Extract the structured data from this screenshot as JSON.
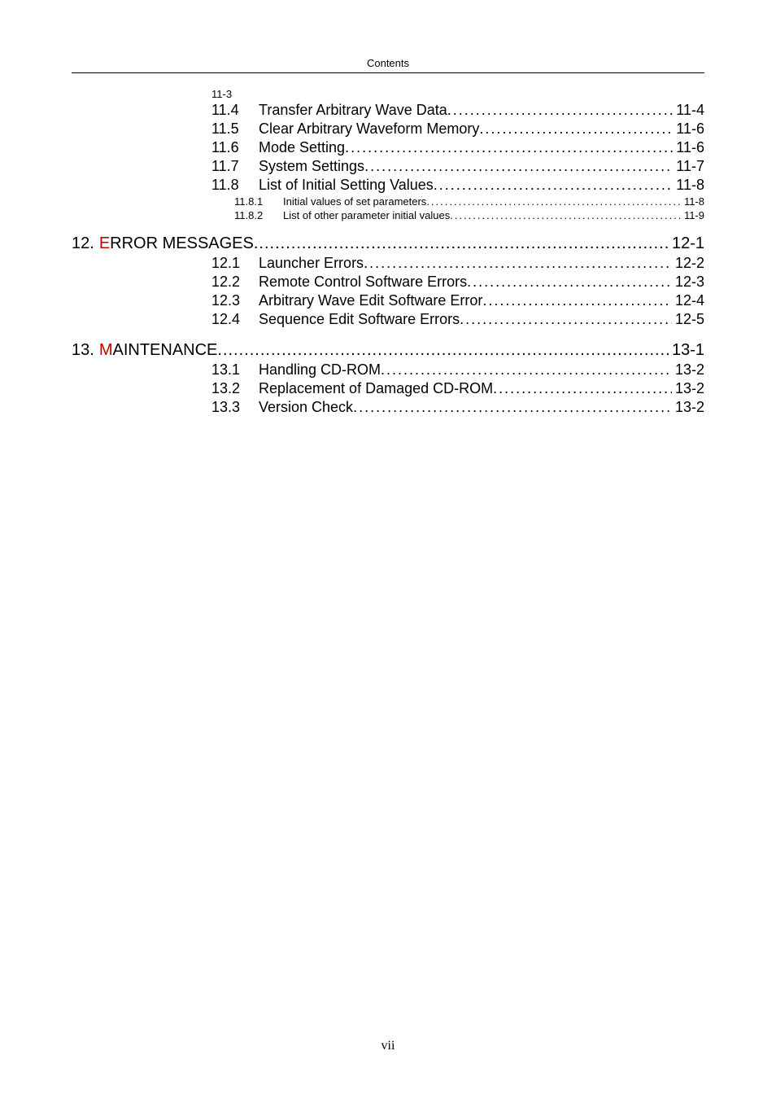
{
  "header": "Contents",
  "footer": "vii",
  "entries": [
    {
      "level": 0,
      "num": "11-3",
      "title": "",
      "page": ""
    },
    {
      "level": 2,
      "num": "11.4",
      "title": "Transfer Arbitrary Wave Data",
      "page": "11-4"
    },
    {
      "level": 2,
      "num": "11.5",
      "title": "Clear Arbitrary Waveform Memory",
      "page": "11-6"
    },
    {
      "level": 2,
      "num": "11.6",
      "title": "Mode Setting",
      "page": "11-6"
    },
    {
      "level": 2,
      "num": "11.7",
      "title": "System Settings",
      "page": "11-7"
    },
    {
      "level": 2,
      "num": "11.8",
      "title": "List of Initial Setting Values",
      "page": "11-8"
    },
    {
      "level": 3,
      "num": "11.8.1",
      "title": "Initial values of set parameters",
      "page": "11-8"
    },
    {
      "level": 3,
      "num": "11.8.2",
      "title": "List of other parameter initial values",
      "page": "11-9"
    },
    {
      "level": 1,
      "num": "12.",
      "first": "E",
      "rest": "RROR MESSAGES",
      "page": "12-1"
    },
    {
      "level": 2,
      "num": "12.1",
      "title": "Launcher Errors",
      "page": "12-2"
    },
    {
      "level": 2,
      "num": "12.2",
      "title": "Remote Control Software Errors",
      "page": "12-3"
    },
    {
      "level": 2,
      "num": "12.3",
      "title": "Arbitrary Wave Edit Software Error",
      "page": "12-4"
    },
    {
      "level": 2,
      "num": "12.4",
      "title": "Sequence Edit Software Errors",
      "page": "12-5"
    },
    {
      "level": 1,
      "num": "13.",
      "first": "M",
      "rest": "AINTENANCE",
      "page": "13-1"
    },
    {
      "level": 2,
      "num": "13.1",
      "title": "Handling CD-ROM",
      "page": "13-2"
    },
    {
      "level": 2,
      "num": "13.2",
      "title": "Replacement of Damaged CD-ROM",
      "page": "13-2"
    },
    {
      "level": 2,
      "num": "13.3",
      "title": "Version Check",
      "page": "13-2"
    }
  ]
}
